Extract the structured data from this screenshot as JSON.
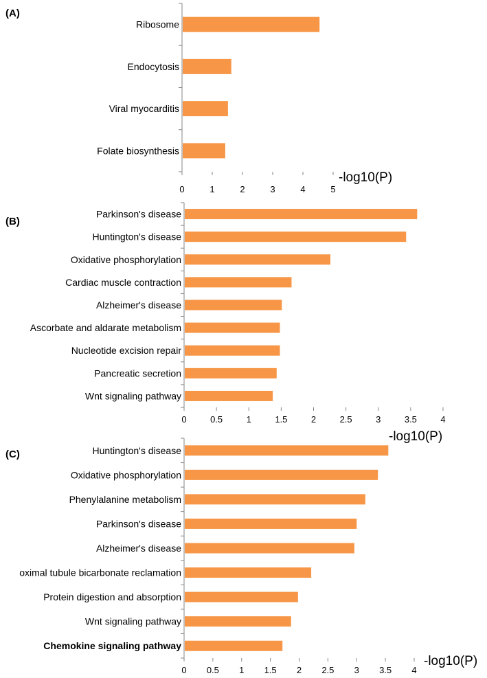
{
  "figure": {
    "bar_color": "#F79646",
    "axis_color": "#868686",
    "text_color": "#000000"
  },
  "chart_data": [
    {
      "type": "bar",
      "orientation": "horizontal",
      "panel_label": "(A)",
      "categories": [
        "Ribosome",
        "Endocytosis",
        "Viral myocarditis",
        "Folate biosynthesis"
      ],
      "values": [
        4.55,
        1.63,
        1.52,
        1.43
      ],
      "xlabel": "-log10(P)",
      "xlim": [
        0,
        5
      ],
      "xticks": [
        "0",
        "1",
        "2",
        "3",
        "4",
        "5"
      ],
      "grid": false,
      "legend": "none"
    },
    {
      "type": "bar",
      "orientation": "horizontal",
      "panel_label": "(B)",
      "categories": [
        "Parkinson's disease",
        "Huntington's disease",
        "Oxidative phosphorylation",
        "Cardiac muscle contraction",
        "Alzheimer's disease",
        "Ascorbate and aldarate metabolism",
        "Nucleotide excision repair",
        "Pancreatic secretion",
        "Wnt signaling pathway"
      ],
      "values": [
        3.6,
        3.43,
        2.26,
        1.66,
        1.51,
        1.48,
        1.48,
        1.43,
        1.37
      ],
      "xlabel": "-log10(P)",
      "xlim": [
        0,
        4
      ],
      "xticks": [
        "0",
        "0.5",
        "1",
        "1.5",
        "2",
        "2.5",
        "3",
        "3.5",
        "4"
      ],
      "grid": false,
      "legend": "none"
    },
    {
      "type": "bar",
      "orientation": "horizontal",
      "panel_label": "(C)",
      "categories": [
        "Huntington's disease",
        "Oxidative phosphorylation",
        "Phenylalanine metabolism",
        "Parkinson's disease",
        "Alzheimer's disease",
        "oximal tubule bicarbonate reclamation",
        "Protein digestion and absorption",
        "Wnt signaling pathway",
        "Chemokine signaling pathway"
      ],
      "bold_categories": [
        "Chemokine signaling pathway"
      ],
      "values": [
        3.55,
        3.37,
        3.15,
        3.0,
        2.96,
        2.21,
        1.98,
        1.86,
        1.71
      ],
      "xlabel": "-log10(P)",
      "xlim": [
        0,
        4
      ],
      "xticks": [
        "0",
        "0.5",
        "1",
        "1.5",
        "2",
        "2.5",
        "3",
        "3.5",
        "4"
      ],
      "grid": false,
      "legend": "none"
    }
  ]
}
